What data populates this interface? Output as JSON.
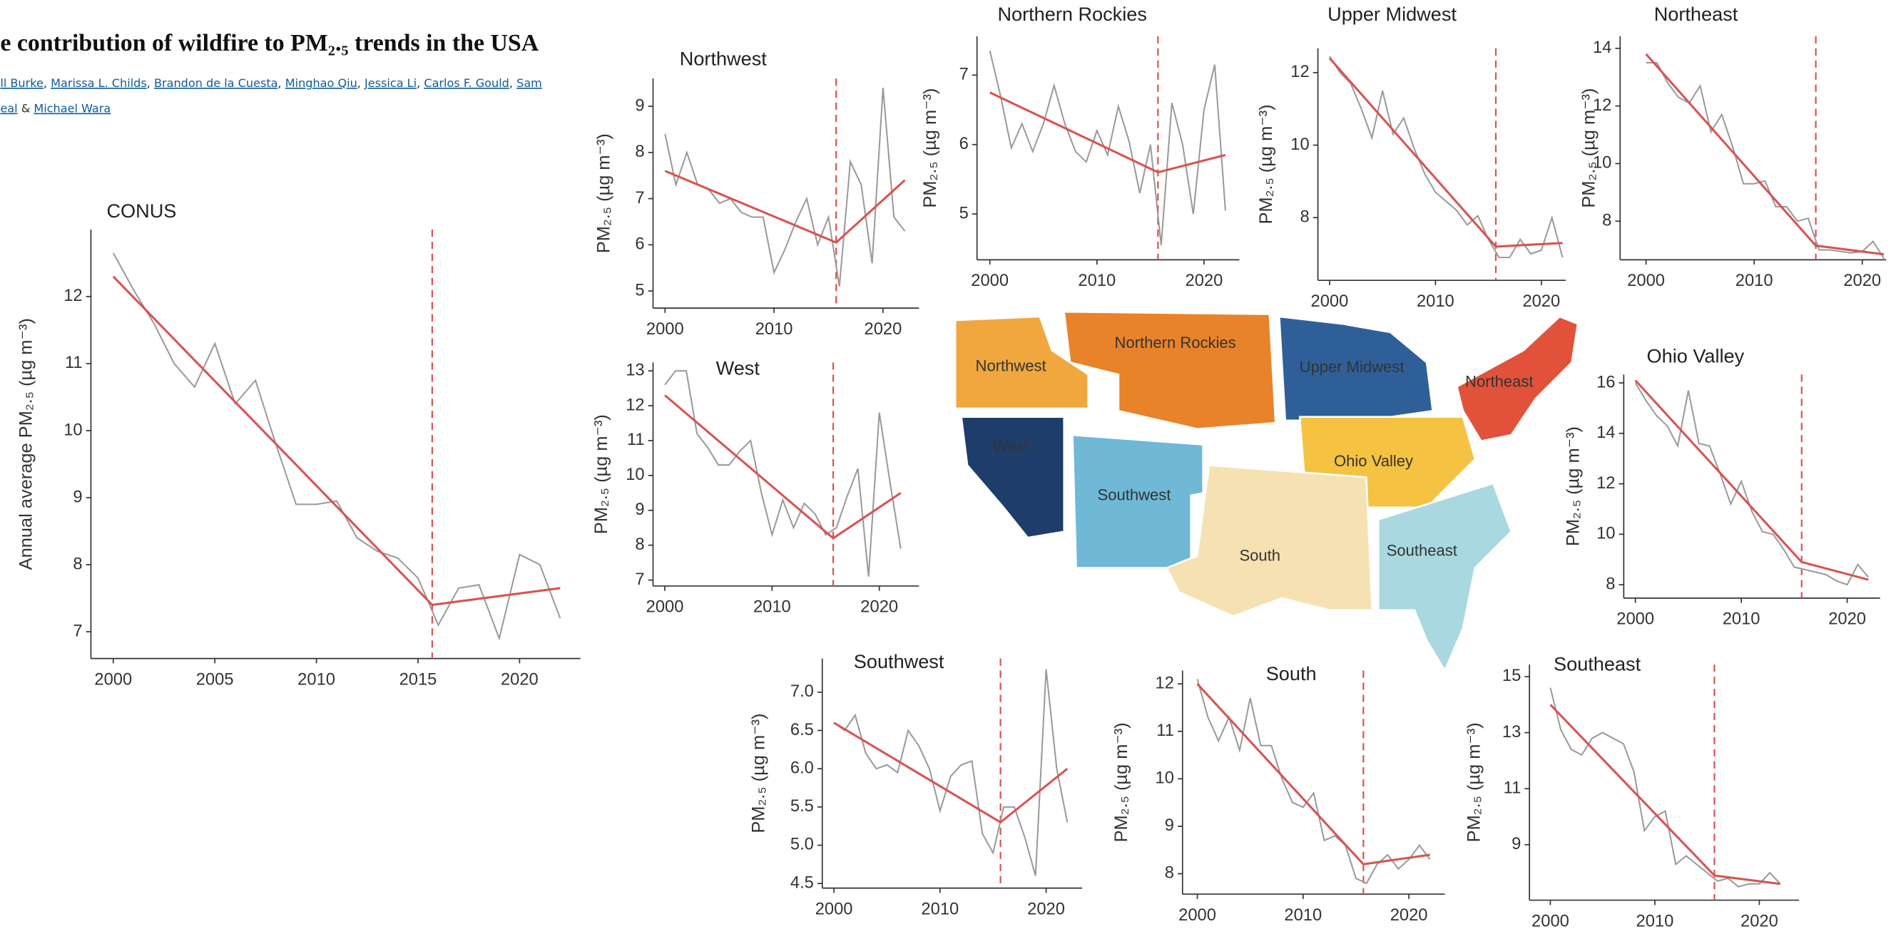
{
  "header": {
    "title": "e contribution of wildfire to PM₂.₅ trends in the USA",
    "authors": [
      {
        "name": "ll Burke",
        "after": ", "
      },
      {
        "name": "Marissa L. Childs",
        "after": ", "
      },
      {
        "name": "Brandon de la Cuesta",
        "after": ", "
      },
      {
        "name": "Minghao Qiu",
        "after": ", "
      },
      {
        "name": "Jessica Li",
        "after": ", "
      },
      {
        "name": "Carlos F. Gould",
        "after": ", "
      },
      {
        "name": "Sam"
      },
      {
        "name": "eal",
        "after": " & "
      },
      {
        "name": "Michael Wara"
      }
    ]
  },
  "map": {
    "regions": [
      {
        "label": "Northwest",
        "color": "#f0a73e"
      },
      {
        "label": "Northern Rockies",
        "color": "#e8832a"
      },
      {
        "label": "Upper Midwest",
        "color": "#2f5f98"
      },
      {
        "label": "Northeast",
        "color": "#e2523a"
      },
      {
        "label": "West",
        "color": "#1f3d6b"
      },
      {
        "label": "Southwest",
        "color": "#6fb8d6"
      },
      {
        "label": "Ohio Valley",
        "color": "#f5c242"
      },
      {
        "label": "South",
        "color": "#f6e1b3"
      },
      {
        "label": "Southeast",
        "color": "#a9d8e0"
      }
    ]
  },
  "chart_data": [
    {
      "type": "line",
      "title": "CONUS",
      "y_label": "Annual average PM₂.₅ (µg m⁻³)",
      "x": [
        2000,
        2001,
        2002,
        2003,
        2004,
        2005,
        2006,
        2007,
        2008,
        2009,
        2010,
        2011,
        2012,
        2013,
        2014,
        2015,
        2016,
        2017,
        2018,
        2019,
        2020,
        2021,
        2022
      ],
      "series": [
        {
          "color": "#9a9a9a",
          "values": [
            12.65,
            12.1,
            11.6,
            11.0,
            10.65,
            11.3,
            10.4,
            10.75,
            9.8,
            8.9,
            8.9,
            8.95,
            8.4,
            8.2,
            8.1,
            7.8,
            7.1,
            7.65,
            7.7,
            6.9,
            8.15,
            8.0,
            7.2
          ]
        },
        {
          "color": "#d9534f",
          "x": [
            2000,
            2015.7,
            2022
          ],
          "values": [
            12.3,
            7.4,
            7.65
          ]
        }
      ],
      "vline": {
        "x": 2015.7,
        "color": "#d9534f",
        "dashed": true
      },
      "xlim": [
        1998.9,
        2023
      ],
      "ylim": [
        6.6,
        13.0
      ],
      "xticks": [
        2000,
        2005,
        2010,
        2015,
        2020
      ],
      "yticks": [
        7,
        8,
        9,
        10,
        11,
        12
      ]
    },
    {
      "type": "line",
      "title": "Northwest",
      "y_label": "PM₂.₅ (µg m⁻³)",
      "x": [
        2000,
        2001,
        2002,
        2003,
        2004,
        2005,
        2006,
        2007,
        2008,
        2009,
        2010,
        2011,
        2012,
        2013,
        2014,
        2015,
        2016,
        2017,
        2018,
        2019,
        2020,
        2021,
        2022
      ],
      "series": [
        {
          "color": "#9a9a9a",
          "values": [
            8.4,
            7.3,
            8.0,
            7.3,
            7.2,
            6.9,
            7.0,
            6.7,
            6.6,
            6.6,
            5.4,
            5.9,
            6.5,
            7.0,
            6.0,
            6.6,
            5.1,
            7.8,
            7.3,
            5.6,
            9.4,
            6.6,
            6.3
          ]
        },
        {
          "color": "#d9534f",
          "x": [
            2000,
            2015.7,
            2022
          ],
          "values": [
            7.6,
            6.05,
            7.4
          ]
        }
      ],
      "vline": {
        "x": 2015.7,
        "color": "#d9534f",
        "dashed": true
      },
      "xlim": [
        1998.9,
        2023.3
      ],
      "ylim": [
        4.63,
        9.6
      ],
      "xticks": [
        2000,
        2010,
        2020
      ],
      "yticks": [
        5,
        6,
        7,
        8,
        9
      ]
    },
    {
      "type": "line",
      "title": "Northern Rockies",
      "y_label": "PM₂.₅ (µg m⁻³)",
      "x": [
        2000,
        2001,
        2002,
        2003,
        2004,
        2005,
        2006,
        2007,
        2008,
        2009,
        2010,
        2011,
        2012,
        2013,
        2014,
        2015,
        2016,
        2017,
        2018,
        2019,
        2020,
        2021,
        2022
      ],
      "series": [
        {
          "color": "#9a9a9a",
          "values": [
            7.35,
            6.7,
            5.95,
            6.3,
            5.9,
            6.3,
            6.85,
            6.3,
            5.9,
            5.75,
            6.2,
            5.85,
            6.55,
            6.05,
            5.3,
            6.0,
            4.55,
            6.6,
            6.0,
            5.0,
            6.5,
            7.15,
            5.05
          ]
        },
        {
          "color": "#d9534f",
          "x": [
            2000,
            2015.7,
            2022
          ],
          "values": [
            6.75,
            5.6,
            5.85
          ]
        }
      ],
      "vline": {
        "x": 2015.7,
        "color": "#d9534f",
        "dashed": true
      },
      "xlim": [
        1998.8,
        2023.3
      ],
      "ylim": [
        4.34,
        7.56
      ],
      "xticks": [
        2000,
        2010,
        2020
      ],
      "yticks": [
        5,
        6,
        7
      ]
    },
    {
      "type": "line",
      "title": "Upper Midwest",
      "y_label": "PM₂.₅ (µg m⁻³)",
      "x": [
        2000,
        2001,
        2002,
        2003,
        2004,
        2005,
        2006,
        2007,
        2008,
        2009,
        2010,
        2011,
        2012,
        2013,
        2014,
        2015,
        2016,
        2017,
        2018,
        2019,
        2020,
        2021,
        2022
      ],
      "series": [
        {
          "color": "#9a9a9a",
          "values": [
            12.45,
            12.0,
            11.7,
            11.0,
            10.2,
            11.5,
            10.3,
            10.75,
            9.9,
            9.2,
            8.7,
            8.45,
            8.2,
            7.8,
            8.05,
            7.4,
            6.9,
            6.9,
            7.4,
            7.0,
            7.1,
            8.0,
            6.9
          ]
        },
        {
          "color": "#d9534f",
          "x": [
            2000,
            2015.7,
            2022
          ],
          "values": [
            12.4,
            7.2,
            7.3
          ]
        }
      ],
      "vline": {
        "x": 2015.7,
        "color": "#d9534f",
        "dashed": true
      },
      "xlim": [
        1998.9,
        2022.3
      ],
      "ylim": [
        6.27,
        12.67
      ],
      "xticks": [
        2000,
        2010,
        2020
      ],
      "yticks": [
        8,
        10,
        12
      ]
    },
    {
      "type": "line",
      "title": "Northeast",
      "y_label": "PM₂.₅ (µg m⁻³)",
      "x": [
        2000,
        2001,
        2002,
        2003,
        2004,
        2005,
        2006,
        2007,
        2008,
        2009,
        2010,
        2011,
        2012,
        2013,
        2014,
        2015,
        2016,
        2017,
        2018,
        2019,
        2020,
        2021,
        2022
      ],
      "series": [
        {
          "color": "#9a9a9a",
          "values": [
            13.5,
            13.5,
            12.8,
            12.3,
            12.1,
            12.7,
            11.1,
            11.7,
            10.6,
            9.3,
            9.3,
            9.4,
            8.5,
            8.5,
            8.0,
            8.1,
            7.0,
            7.0,
            6.95,
            6.9,
            6.95,
            7.3,
            6.7
          ]
        },
        {
          "color": "#d9534f",
          "x": [
            2000,
            2015.7,
            2022
          ],
          "values": [
            13.8,
            7.15,
            6.85
          ]
        }
      ],
      "vline": {
        "x": 2015.7,
        "color": "#d9534f",
        "dashed": true
      },
      "xlim": [
        1997.6,
        2022.2
      ],
      "ylim": [
        6.66,
        14.42
      ],
      "xticks": [
        2000,
        2010,
        2020
      ],
      "yticks": [
        8,
        10,
        12,
        14
      ]
    },
    {
      "type": "line",
      "title": "West",
      "y_label": "PM₂.₅ (µg m⁻³)",
      "x": [
        2000,
        2001,
        2002,
        2003,
        2004,
        2005,
        2006,
        2007,
        2008,
        2009,
        2010,
        2011,
        2012,
        2013,
        2014,
        2015,
        2016,
        2017,
        2018,
        2019,
        2020,
        2021,
        2022
      ],
      "series": [
        {
          "color": "#9a9a9a",
          "values": [
            12.6,
            13.0,
            13.0,
            11.2,
            10.8,
            10.3,
            10.3,
            10.7,
            11.0,
            9.5,
            8.3,
            9.3,
            8.5,
            9.2,
            8.9,
            8.3,
            8.5,
            9.4,
            10.2,
            7.1,
            11.8,
            9.8,
            7.9
          ]
        },
        {
          "color": "#d9534f",
          "x": [
            2000,
            2015.7,
            2022
          ],
          "values": [
            12.3,
            8.2,
            9.5
          ]
        }
      ],
      "vline": {
        "x": 2015.7,
        "color": "#d9534f",
        "dashed": true
      },
      "xlim": [
        1998.9,
        2023.7
      ],
      "ylim": [
        6.83,
        13.24
      ],
      "xticks": [
        2000,
        2010,
        2020
      ],
      "yticks": [
        7,
        8,
        9,
        10,
        11,
        12,
        13
      ]
    },
    {
      "type": "line",
      "title": "Ohio Valley",
      "y_label": "PM₂.₅ (µg m⁻³)",
      "x": [
        2000,
        2001,
        2002,
        2003,
        2004,
        2005,
        2006,
        2007,
        2008,
        2009,
        2010,
        2011,
        2012,
        2013,
        2014,
        2015,
        2016,
        2017,
        2018,
        2019,
        2020,
        2021,
        2022
      ],
      "series": [
        {
          "color": "#9a9a9a",
          "values": [
            16.0,
            15.3,
            14.7,
            14.3,
            13.5,
            15.7,
            13.6,
            13.5,
            12.4,
            11.2,
            12.1,
            10.9,
            10.1,
            10.0,
            9.4,
            8.7,
            8.6,
            8.5,
            8.4,
            8.15,
            8.0,
            8.8,
            8.3
          ]
        },
        {
          "color": "#d9534f",
          "x": [
            2000,
            2015.7,
            2022
          ],
          "values": [
            16.1,
            8.9,
            8.2
          ]
        }
      ],
      "vline": {
        "x": 2015.7,
        "color": "#d9534f",
        "dashed": true
      },
      "xlim": [
        1998.9,
        2023.1
      ],
      "ylim": [
        7.47,
        16.33
      ],
      "xticks": [
        2000,
        2010,
        2020
      ],
      "yticks": [
        8,
        10,
        12,
        14,
        16
      ]
    },
    {
      "type": "line",
      "title": "Southwest",
      "y_label": "PM₂.₅ (µg m⁻³)",
      "x": [
        2000,
        2001,
        2002,
        2003,
        2004,
        2005,
        2006,
        2007,
        2008,
        2009,
        2010,
        2011,
        2012,
        2013,
        2014,
        2015,
        2016,
        2017,
        2018,
        2019,
        2020,
        2021,
        2022
      ],
      "series": [
        {
          "color": "#9a9a9a",
          "values": [
            6.6,
            6.5,
            6.7,
            6.2,
            6.0,
            6.05,
            5.95,
            6.5,
            6.3,
            6.0,
            5.45,
            5.9,
            6.05,
            6.1,
            5.15,
            4.9,
            5.5,
            5.5,
            5.1,
            4.6,
            7.3,
            6.0,
            5.3
          ]
        },
        {
          "color": "#d9534f",
          "x": [
            2000,
            2015.7,
            2022
          ],
          "values": [
            6.6,
            5.3,
            6.0
          ]
        }
      ],
      "vline": {
        "x": 2015.7,
        "color": "#d9534f",
        "dashed": true
      },
      "xlim": [
        1998.9,
        2023.4
      ],
      "ylim": [
        4.44,
        7.44
      ],
      "xticks": [
        2000,
        2010,
        2020
      ],
      "yticks": [
        4.5,
        {
          "value": 5,
          "label": "5.0"
        },
        5.5,
        {
          "value": 6,
          "label": "6.0"
        },
        6.5,
        {
          "value": 7,
          "label": "7.0"
        }
      ]
    },
    {
      "type": "line",
      "title": "South",
      "y_label": "PM₂.₅ (µg m⁻³)",
      "x": [
        2000,
        2001,
        2002,
        2003,
        2004,
        2005,
        2006,
        2007,
        2008,
        2009,
        2010,
        2011,
        2012,
        2013,
        2014,
        2015,
        2016,
        2017,
        2018,
        2019,
        2020,
        2021,
        2022
      ],
      "series": [
        {
          "color": "#9a9a9a",
          "values": [
            12.1,
            11.3,
            10.8,
            11.3,
            10.6,
            11.7,
            10.7,
            10.7,
            10.0,
            9.5,
            9.4,
            9.7,
            8.7,
            8.8,
            8.6,
            7.9,
            7.8,
            8.2,
            8.4,
            8.1,
            8.3,
            8.6,
            8.3
          ]
        },
        {
          "color": "#d9534f",
          "x": [
            2000,
            2015.7,
            2022
          ],
          "values": [
            12.0,
            8.2,
            8.4
          ]
        }
      ],
      "vline": {
        "x": 2015.7,
        "color": "#d9534f",
        "dashed": true
      },
      "xlim": [
        1998.6,
        2023.4
      ],
      "ylim": [
        7.57,
        12.28
      ],
      "xticks": [
        2000,
        2010,
        2020
      ],
      "yticks": [
        8,
        9,
        10,
        11,
        12
      ]
    },
    {
      "type": "line",
      "title": "Southeast",
      "y_label": "PM₂.₅ (µg m⁻³)",
      "x": [
        2000,
        2001,
        2002,
        2003,
        2004,
        2005,
        2006,
        2007,
        2008,
        2009,
        2010,
        2011,
        2012,
        2013,
        2014,
        2015,
        2016,
        2017,
        2018,
        2019,
        2020,
        2021,
        2022
      ],
      "series": [
        {
          "color": "#9a9a9a",
          "values": [
            14.6,
            13.1,
            12.4,
            12.2,
            12.8,
            13.0,
            12.8,
            12.6,
            11.6,
            9.5,
            10.0,
            10.2,
            8.3,
            8.6,
            8.3,
            8.0,
            7.7,
            7.8,
            7.5,
            7.6,
            7.6,
            8.0,
            7.6
          ]
        },
        {
          "color": "#d9534f",
          "x": [
            2000,
            2015.7,
            2022
          ],
          "values": [
            14.0,
            7.9,
            7.6
          ]
        }
      ],
      "vline": {
        "x": 2015.7,
        "color": "#d9534f",
        "dashed": true
      },
      "xlim": [
        1998.0,
        2023.8
      ],
      "ylim": [
        7.02,
        15.43
      ],
      "xticks": [
        2000,
        2010,
        2020
      ],
      "yticks": [
        9,
        11,
        13,
        15
      ]
    }
  ]
}
